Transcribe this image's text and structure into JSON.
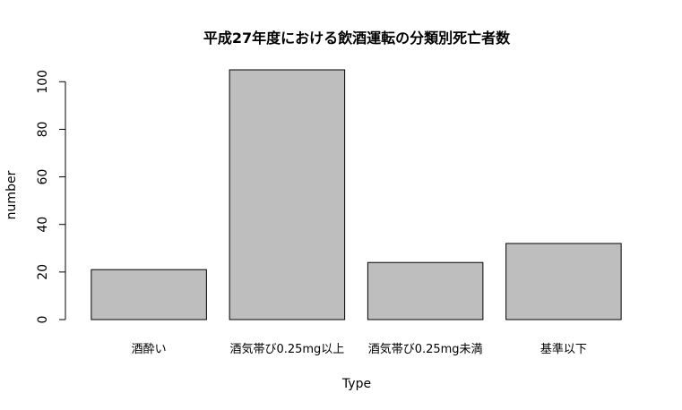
{
  "chart_data": {
    "type": "bar",
    "title": "平成27年度における飲酒運転の分類別死亡者数",
    "xlabel": "Type",
    "ylabel": "number",
    "categories": [
      "酒酔い",
      "酒気帯び0.25mg以上",
      "酒気帯び0.25mg未満",
      "基準以下"
    ],
    "values": [
      21,
      105,
      24,
      32
    ],
    "ylim": [
      0,
      105
    ],
    "yticks": [
      0,
      20,
      40,
      60,
      80,
      100
    ],
    "bar_color": "#bebebe",
    "grid": false,
    "legend": "none"
  }
}
